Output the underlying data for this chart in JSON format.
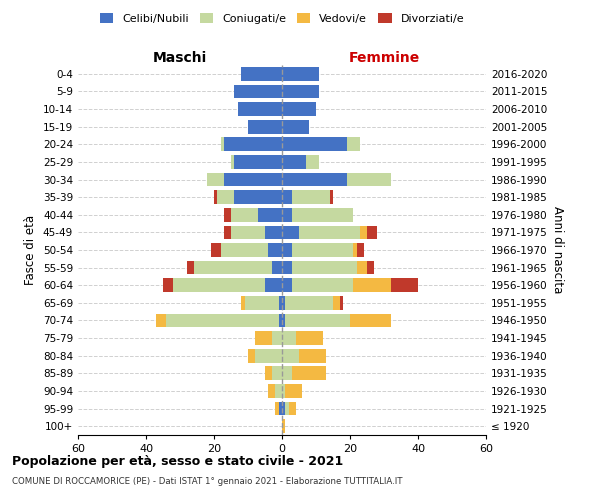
{
  "age_groups": [
    "0-4",
    "5-9",
    "10-14",
    "15-19",
    "20-24",
    "25-29",
    "30-34",
    "35-39",
    "40-44",
    "45-49",
    "50-54",
    "55-59",
    "60-64",
    "65-69",
    "70-74",
    "75-79",
    "80-84",
    "85-89",
    "90-94",
    "95-99",
    "100+"
  ],
  "birth_years": [
    "2016-2020",
    "2011-2015",
    "2006-2010",
    "2001-2005",
    "1996-2000",
    "1991-1995",
    "1986-1990",
    "1981-1985",
    "1976-1980",
    "1971-1975",
    "1966-1970",
    "1961-1965",
    "1956-1960",
    "1951-1955",
    "1946-1950",
    "1941-1945",
    "1936-1940",
    "1931-1935",
    "1926-1930",
    "1921-1925",
    "≤ 1920"
  ],
  "male": {
    "celibi": [
      12,
      14,
      13,
      10,
      17,
      14,
      17,
      14,
      7,
      5,
      4,
      3,
      5,
      1,
      1,
      0,
      0,
      0,
      0,
      1,
      0
    ],
    "coniugati": [
      0,
      0,
      0,
      0,
      1,
      1,
      5,
      5,
      8,
      10,
      14,
      23,
      27,
      10,
      33,
      3,
      8,
      3,
      2,
      0,
      0
    ],
    "vedovi": [
      0,
      0,
      0,
      0,
      0,
      0,
      0,
      0,
      0,
      0,
      0,
      0,
      0,
      1,
      3,
      5,
      2,
      2,
      2,
      1,
      0
    ],
    "divorziati": [
      0,
      0,
      0,
      0,
      0,
      0,
      0,
      1,
      2,
      2,
      3,
      2,
      3,
      0,
      0,
      0,
      0,
      0,
      0,
      0,
      0
    ]
  },
  "female": {
    "nubili": [
      11,
      11,
      10,
      8,
      19,
      7,
      19,
      3,
      3,
      5,
      3,
      3,
      3,
      1,
      1,
      0,
      0,
      0,
      0,
      1,
      0
    ],
    "coniugate": [
      0,
      0,
      0,
      0,
      4,
      4,
      13,
      11,
      18,
      18,
      18,
      19,
      18,
      14,
      19,
      4,
      5,
      3,
      1,
      1,
      0
    ],
    "vedove": [
      0,
      0,
      0,
      0,
      0,
      0,
      0,
      0,
      0,
      2,
      1,
      3,
      11,
      2,
      12,
      8,
      8,
      10,
      5,
      2,
      1
    ],
    "divorziate": [
      0,
      0,
      0,
      0,
      0,
      0,
      0,
      1,
      0,
      3,
      2,
      2,
      8,
      1,
      0,
      0,
      0,
      0,
      0,
      0,
      0
    ]
  },
  "colors": {
    "celibi": "#4472c4",
    "coniugati": "#c5d9a0",
    "vedovi": "#f4b942",
    "divorziati": "#c0392b"
  },
  "title": "Popolazione per età, sesso e stato civile - 2021",
  "subtitle": "COMUNE DI ROCCAMORICE (PE) - Dati ISTAT 1° gennaio 2021 - Elaborazione TUTTITALIA.IT",
  "xlabel_left": "Maschi",
  "xlabel_right": "Femmine",
  "ylabel_left": "Fasce di età",
  "ylabel_right": "Anni di nascita",
  "xlim": 60,
  "legend_labels": [
    "Celibi/Nubili",
    "Coniugati/e",
    "Vedovi/e",
    "Divorziati/e"
  ],
  "bg_color": "#ffffff",
  "grid_color": "#d0d0d0"
}
